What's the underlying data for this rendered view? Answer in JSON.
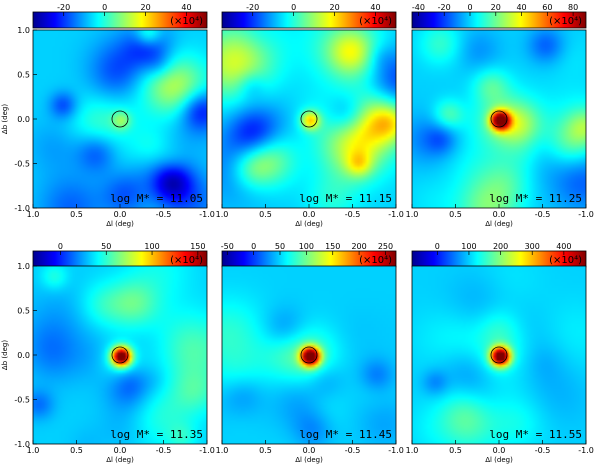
{
  "chart_data": [
    {
      "type": "heatmap",
      "label": "log M* = 11.05",
      "colorbar": {
        "unit": "(×10⁴)",
        "ticks": [
          -20,
          0,
          20,
          40
        ],
        "range": [
          -35,
          50
        ]
      },
      "peak_intensity": 0.18,
      "xlabel": "Δl (deg)",
      "ylabel": "Δb (deg)",
      "xticks": [
        1.0,
        0.5,
        0.0,
        -0.5,
        -1.0
      ],
      "yticks": [
        1.0,
        0.5,
        0.0,
        -0.5,
        -1.0
      ]
    },
    {
      "type": "heatmap",
      "label": "log M* = 11.15",
      "colorbar": {
        "unit": "(×10⁴)",
        "ticks": [
          -20,
          0,
          20,
          40
        ],
        "range": [
          -35,
          50
        ]
      },
      "peak_intensity": 0.4,
      "xlabel": "Δl (deg)",
      "ylabel": "",
      "xticks": [
        1.0,
        0.5,
        0.0,
        -0.5,
        -1.0
      ],
      "yticks": []
    },
    {
      "type": "heatmap",
      "label": "log M* = 11.25",
      "colorbar": {
        "unit": "(×10⁴)",
        "ticks": [
          -40,
          -20,
          0,
          20,
          40,
          60,
          80
        ],
        "range": [
          -45,
          90
        ]
      },
      "peak_intensity": 0.9,
      "xlabel": "Δl (deg)",
      "ylabel": "",
      "xticks": [
        1.0,
        0.5,
        0.0,
        -0.5,
        -1.0
      ],
      "yticks": []
    },
    {
      "type": "heatmap",
      "label": "log M* = 11.35",
      "colorbar": {
        "unit": "(×10⁴)",
        "ticks": [
          0,
          50,
          100,
          150
        ],
        "range": [
          -30,
          160
        ]
      },
      "peak_intensity": 1.0,
      "xlabel": "Δl (deg)",
      "ylabel": "Δb (deg)",
      "xticks": [
        1.0,
        0.5,
        0.0,
        -0.5,
        -1.0
      ],
      "yticks": [
        1.0,
        0.5,
        0.0,
        -0.5,
        -1.0
      ]
    },
    {
      "type": "heatmap",
      "label": "log M* = 11.45",
      "colorbar": {
        "unit": "(×10⁴)",
        "ticks": [
          -50,
          0,
          50,
          100,
          150,
          200,
          250
        ],
        "range": [
          -60,
          270
        ]
      },
      "peak_intensity": 1.0,
      "xlabel": "Δl (deg)",
      "ylabel": "",
      "xticks": [
        1.0,
        0.5,
        0.0,
        -0.5,
        -1.0
      ],
      "yticks": []
    },
    {
      "type": "heatmap",
      "label": "log M* = 11.55",
      "colorbar": {
        "unit": "(×10⁴)",
        "ticks": [
          0,
          100,
          200,
          300,
          400
        ],
        "range": [
          -80,
          470
        ]
      },
      "peak_intensity": 1.0,
      "xlabel": "Δl (deg)",
      "ylabel": "",
      "xticks": [
        1.0,
        0.5,
        0.0,
        -0.5,
        -1.0
      ],
      "yticks": []
    }
  ],
  "colors": {
    "colormap": [
      "#00008f",
      "#0000ff",
      "#0080ff",
      "#00ffff",
      "#80ff80",
      "#ffff00",
      "#ff8000",
      "#ff0000",
      "#800000"
    ],
    "background_level": 0.33
  }
}
